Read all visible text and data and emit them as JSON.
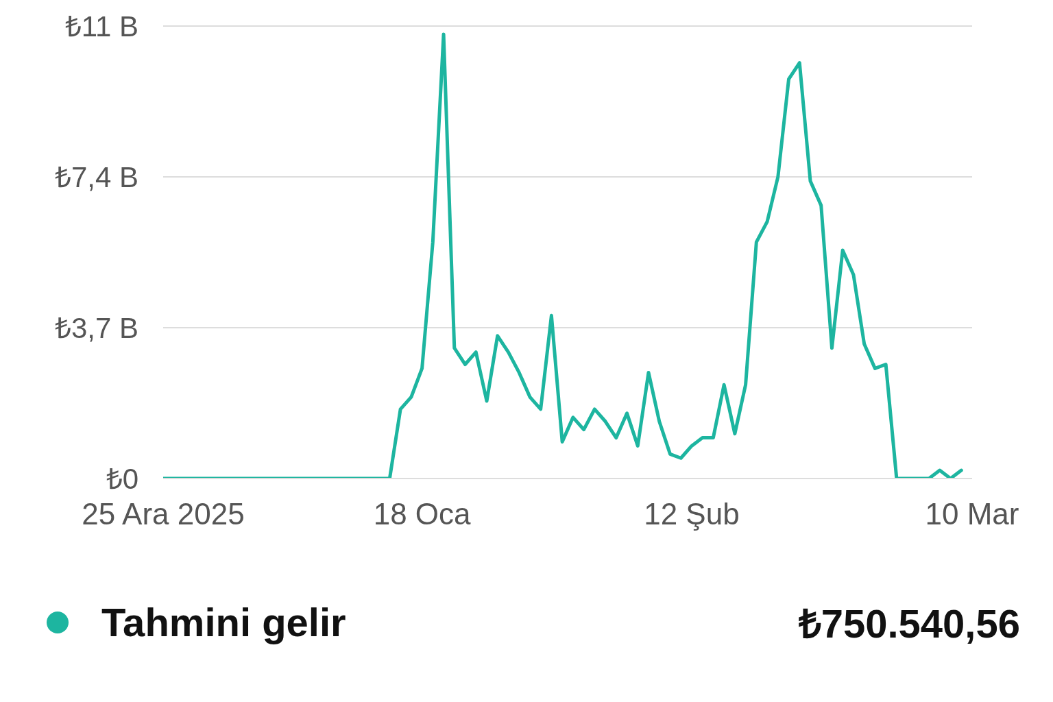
{
  "chart_data": {
    "type": "line",
    "x": [
      "2025-12-25",
      "2026-01-15",
      "2026-01-16",
      "2026-01-17",
      "2026-01-18",
      "2026-01-19",
      "2026-01-20",
      "2026-01-21",
      "2026-01-22",
      "2026-01-23",
      "2026-01-24",
      "2026-01-25",
      "2026-01-26",
      "2026-01-27",
      "2026-01-28",
      "2026-01-29",
      "2026-01-30",
      "2026-01-31",
      "2026-02-01",
      "2026-02-02",
      "2026-02-03",
      "2026-02-04",
      "2026-02-05",
      "2026-02-06",
      "2026-02-07",
      "2026-02-08",
      "2026-02-09",
      "2026-02-10",
      "2026-02-11",
      "2026-02-12",
      "2026-02-13",
      "2026-02-14",
      "2026-02-15",
      "2026-02-16",
      "2026-02-17",
      "2026-02-18",
      "2026-02-19",
      "2026-02-20",
      "2026-02-21",
      "2026-02-22",
      "2026-02-23",
      "2026-02-24",
      "2026-02-25",
      "2026-02-26",
      "2026-02-27",
      "2026-02-28",
      "2026-03-01",
      "2026-03-02",
      "2026-03-03",
      "2026-03-06",
      "2026-03-07",
      "2026-03-08",
      "2026-03-09"
    ],
    "series": [
      {
        "name": "Tahmini gelir",
        "color": "#1db5a0",
        "values": [
          0,
          0,
          1.7,
          2.0,
          2.7,
          5.8,
          10.9,
          3.2,
          2.8,
          3.1,
          1.9,
          3.5,
          3.1,
          2.6,
          2.0,
          1.7,
          4.0,
          0.9,
          1.5,
          1.2,
          1.7,
          1.4,
          1.0,
          1.6,
          0.8,
          2.6,
          1.4,
          0.6,
          0.5,
          0.8,
          1.0,
          1.0,
          2.3,
          1.1,
          2.3,
          5.8,
          6.3,
          7.4,
          9.8,
          10.2,
          7.3,
          6.7,
          3.2,
          5.6,
          5.0,
          3.3,
          2.7,
          2.8,
          0,
          0,
          0.2,
          0,
          0.2
        ]
      }
    ],
    "xlim": [
      "2025-12-25",
      "2026-03-10"
    ],
    "xticks": [
      {
        "value": "2025-12-25",
        "label": "25 Ara 2025"
      },
      {
        "value": "2026-01-18",
        "label": "18 Oca"
      },
      {
        "value": "2026-02-12",
        "label": "12 Şub"
      },
      {
        "value": "2026-03-10",
        "label": "10 Mar"
      }
    ],
    "ylim": [
      0,
      11.1
    ],
    "yticks": [
      {
        "value": 0,
        "label": "₺0"
      },
      {
        "value": 3.7,
        "label": "₺3,7 B"
      },
      {
        "value": 7.4,
        "label": "₺7,4 B"
      },
      {
        "value": 11.1,
        "label": "₺11 B"
      }
    ],
    "grid": "y",
    "legend": "bottom",
    "marker": "none",
    "line_style": "solid",
    "annotations": [
      "₺750.540,56"
    ]
  }
}
